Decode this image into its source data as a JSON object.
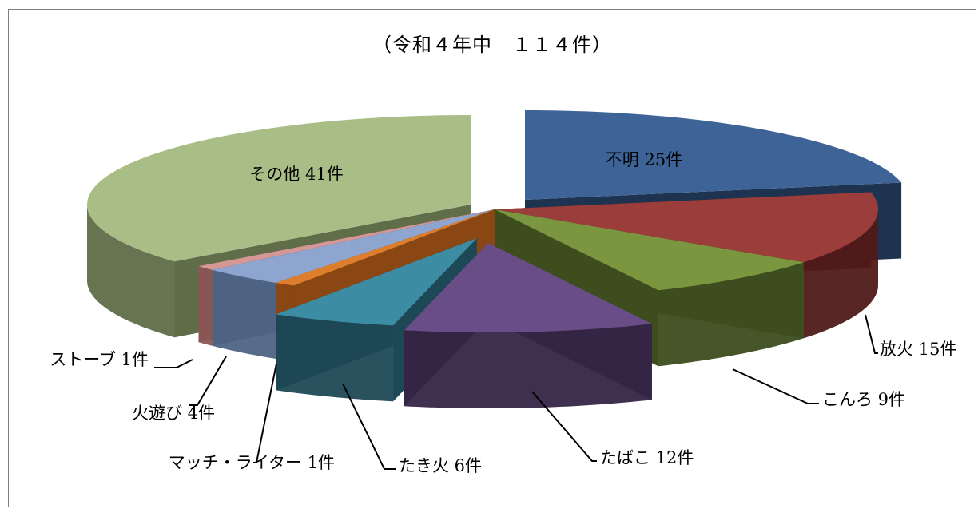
{
  "chart_data": {
    "type": "pie",
    "title": "（令和４年中　１１４件）",
    "total": 114,
    "slices": [
      {
        "name": "不明",
        "value": 25,
        "label": "不明 25件",
        "color": "#3e6497",
        "side": "#1d3350"
      },
      {
        "name": "放火",
        "value": 15,
        "label": "放火 15件",
        "color": "#9b3d3a",
        "side": "#4f1a19"
      },
      {
        "name": "こんろ",
        "value": 9,
        "label": "こんろ 9件",
        "color": "#7a963f",
        "side": "#3d4d1d"
      },
      {
        "name": "たばこ",
        "value": 12,
        "label": "たばこ 12件",
        "color": "#684d86",
        "side": "#352546"
      },
      {
        "name": "たき火",
        "value": 6,
        "label": "たき火 6件",
        "color": "#3c8da3",
        "side": "#1d4855"
      },
      {
        "name": "マッチ・ライター",
        "value": 1,
        "label": "マッチ・ライター 1件",
        "color": "#dc7e2b",
        "side": "#8a4713"
      },
      {
        "name": "火遊び",
        "value": 4,
        "label": "火遊び 4件",
        "color": "#8ea6cf",
        "side": "#4e6384"
      },
      {
        "name": "ストーブ",
        "value": 1,
        "label": "ストーブ 1件",
        "color": "#d49796",
        "side": "#8a5655"
      },
      {
        "name": "その他",
        "value": 41,
        "label": "その他 41件",
        "color": "#a9be86",
        "side": "#5f6d48"
      }
    ],
    "legend": "none",
    "style": "3d-exploded"
  }
}
